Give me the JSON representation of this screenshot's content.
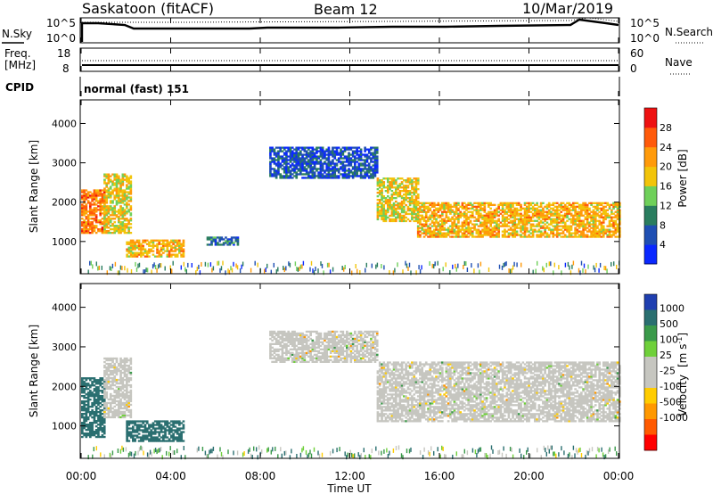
{
  "header": {
    "site": "Saskatoon (fitACF)",
    "beam": "Beam 12",
    "date": "10/Mar/2019"
  },
  "top_panel": {
    "left_label": "N.Sky",
    "left_ticks": [
      "10^5",
      "10^0"
    ],
    "right_label": "N.Search",
    "right_ticks": [
      "10^5",
      "10^0"
    ]
  },
  "freq_panel": {
    "left_label_line1": "Freq.",
    "left_label_line2": "[MHz]",
    "left_ticks": [
      "18",
      "8"
    ],
    "right_label": "Nave",
    "right_ticks": [
      "60",
      "0"
    ]
  },
  "cpid": {
    "label": "CPID",
    "value": "normal (fast) 151"
  },
  "colors": {
    "power": [
      "#0a28ff",
      "#1f4fb3",
      "#2a7d5f",
      "#6fd05a",
      "#f2c40a",
      "#ff9a0a",
      "#ff5a0a",
      "#ee1111"
    ],
    "velocity_neg": [
      "#ff0000",
      "#ff5a00",
      "#ff9800",
      "#ffcc00"
    ],
    "velocity_zero": "#c6c6c0",
    "velocity_pos": [
      "#6fd03a",
      "#3a9a4a",
      "#2a6f70",
      "#1f3fb0"
    ]
  },
  "chart_data": [
    {
      "type": "heatmap",
      "title": "",
      "xlabel": "",
      "ylabel": "Slant Range [km]",
      "xlim": [
        "00:00",
        "24:00"
      ],
      "ylim": [
        180,
        4600
      ],
      "y_ticks": [
        "1000",
        "2000",
        "3000",
        "4000"
      ],
      "colorbar": {
        "label": "Power [dB]",
        "range": [
          0,
          32
        ],
        "ticks": [
          "4",
          "8",
          "12",
          "16",
          "20",
          "24",
          "28"
        ]
      },
      "echo_regions": [
        {
          "t_start": 0.0,
          "t_end": 1.0,
          "r_low": 1200,
          "r_high": 2300,
          "power_db": 24
        },
        {
          "t_start": 1.0,
          "t_end": 2.2,
          "r_low": 1200,
          "r_high": 2700,
          "power_db": 18
        },
        {
          "t_start": 2.0,
          "t_end": 4.6,
          "r_low": 600,
          "r_high": 1050,
          "power_db": 20
        },
        {
          "t_start": 5.6,
          "t_end": 7.0,
          "r_low": 900,
          "r_high": 1100,
          "power_db": 8
        },
        {
          "t_start": 8.4,
          "t_end": 13.2,
          "r_low": 2600,
          "r_high": 3400,
          "power_db": 6
        },
        {
          "t_start": 13.2,
          "t_end": 15.0,
          "r_low": 1500,
          "r_high": 2600,
          "power_db": 18
        },
        {
          "t_start": 15.0,
          "t_end": 24.0,
          "r_low": 1100,
          "r_high": 2000,
          "power_db": 20
        }
      ]
    },
    {
      "type": "heatmap",
      "title": "",
      "xlabel": "Time UT",
      "ylabel": "Slant Range [km]",
      "x_ticks": [
        "00:00",
        "04:00",
        "08:00",
        "12:00",
        "16:00",
        "20:00",
        "00:00"
      ],
      "ylim": [
        180,
        4600
      ],
      "y_ticks": [
        "1000",
        "2000",
        "3000",
        "4000"
      ],
      "colorbar": {
        "label_main": "Velocity",
        "label_unit_open": "[m s",
        "label_unit_exp": "-1",
        "label_unit_close": "]",
        "ticks": [
          "1000",
          "500",
          "100",
          "25",
          "-25",
          "-100",
          "-500",
          "-1000"
        ]
      },
      "echo_regions": [
        {
          "t_start": 0.0,
          "t_end": 1.0,
          "r_low": 700,
          "r_high": 2200,
          "velocity": 400
        },
        {
          "t_start": 1.0,
          "t_end": 2.2,
          "r_low": 1200,
          "r_high": 2700,
          "velocity": 0
        },
        {
          "t_start": 2.0,
          "t_end": 4.6,
          "r_low": 600,
          "r_high": 1100,
          "velocity": 200
        },
        {
          "t_start": 8.4,
          "t_end": 13.2,
          "r_low": 2600,
          "r_high": 3400,
          "velocity": 0
        },
        {
          "t_start": 13.2,
          "t_end": 24.0,
          "r_low": 1100,
          "r_high": 2600,
          "velocity": 0
        }
      ]
    }
  ]
}
